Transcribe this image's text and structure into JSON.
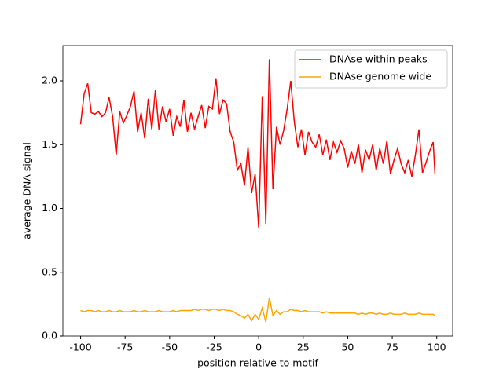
{
  "chart_data": {
    "type": "line",
    "xlabel": "position relative to motif",
    "ylabel": "average DNA signal",
    "x": [
      -100,
      -98,
      -96,
      -94,
      -92,
      -90,
      -88,
      -86,
      -84,
      -82,
      -80,
      -78,
      -76,
      -74,
      -72,
      -70,
      -68,
      -66,
      -64,
      -62,
      -60,
      -58,
      -56,
      -54,
      -52,
      -50,
      -48,
      -46,
      -44,
      -42,
      -40,
      -38,
      -36,
      -34,
      -32,
      -30,
      -28,
      -26,
      -24,
      -22,
      -20,
      -18,
      -16,
      -14,
      -12,
      -10,
      -8,
      -6,
      -4,
      -2,
      0,
      2,
      4,
      6,
      8,
      10,
      12,
      14,
      16,
      18,
      20,
      22,
      24,
      26,
      28,
      30,
      32,
      34,
      36,
      38,
      40,
      42,
      44,
      46,
      48,
      50,
      52,
      54,
      56,
      58,
      60,
      62,
      64,
      66,
      68,
      70,
      72,
      74,
      76,
      78,
      80,
      82,
      84,
      86,
      88,
      90,
      92,
      94,
      96,
      98,
      99
    ],
    "series": [
      {
        "name": "DNAse within peaks",
        "color": "#ff0000",
        "values": [
          1.66,
          1.9,
          1.98,
          1.75,
          1.74,
          1.76,
          1.72,
          1.75,
          1.87,
          1.72,
          1.42,
          1.76,
          1.67,
          1.73,
          1.8,
          1.92,
          1.6,
          1.75,
          1.55,
          1.86,
          1.62,
          1.93,
          1.62,
          1.8,
          1.68,
          1.78,
          1.57,
          1.72,
          1.64,
          1.85,
          1.6,
          1.75,
          1.62,
          1.72,
          1.81,
          1.63,
          1.8,
          1.78,
          2.02,
          1.74,
          1.85,
          1.82,
          1.6,
          1.52,
          1.3,
          1.35,
          1.18,
          1.48,
          1.12,
          1.27,
          0.85,
          1.88,
          0.88,
          2.17,
          1.15,
          1.64,
          1.5,
          1.61,
          1.78,
          2.0,
          1.68,
          1.48,
          1.62,
          1.42,
          1.6,
          1.52,
          1.48,
          1.58,
          1.42,
          1.54,
          1.38,
          1.52,
          1.44,
          1.53,
          1.47,
          1.32,
          1.45,
          1.35,
          1.5,
          1.28,
          1.46,
          1.38,
          1.5,
          1.3,
          1.47,
          1.35,
          1.53,
          1.27,
          1.38,
          1.47,
          1.35,
          1.28,
          1.38,
          1.25,
          1.42,
          1.62,
          1.28,
          1.36,
          1.45,
          1.52,
          1.27
        ]
      },
      {
        "name": "DNAse genome wide",
        "color": "#ffa500",
        "values": [
          0.2,
          0.19,
          0.2,
          0.2,
          0.19,
          0.2,
          0.19,
          0.19,
          0.2,
          0.19,
          0.19,
          0.2,
          0.19,
          0.19,
          0.19,
          0.2,
          0.19,
          0.19,
          0.2,
          0.19,
          0.19,
          0.19,
          0.2,
          0.19,
          0.19,
          0.19,
          0.2,
          0.19,
          0.2,
          0.2,
          0.2,
          0.2,
          0.21,
          0.2,
          0.21,
          0.21,
          0.2,
          0.21,
          0.21,
          0.2,
          0.21,
          0.2,
          0.2,
          0.19,
          0.17,
          0.16,
          0.14,
          0.17,
          0.12,
          0.17,
          0.13,
          0.22,
          0.11,
          0.3,
          0.16,
          0.2,
          0.17,
          0.19,
          0.19,
          0.21,
          0.2,
          0.2,
          0.19,
          0.2,
          0.19,
          0.19,
          0.19,
          0.19,
          0.18,
          0.19,
          0.18,
          0.18,
          0.18,
          0.18,
          0.18,
          0.18,
          0.18,
          0.18,
          0.17,
          0.18,
          0.17,
          0.18,
          0.18,
          0.17,
          0.18,
          0.17,
          0.17,
          0.18,
          0.17,
          0.17,
          0.17,
          0.18,
          0.17,
          0.17,
          0.17,
          0.18,
          0.17,
          0.17,
          0.17,
          0.17,
          0.16
        ]
      }
    ],
    "xlim": [
      -109.95,
      108.95
    ],
    "ylim": [
      0,
      2.277
    ],
    "xticks": [
      -100,
      -75,
      -50,
      -25,
      0,
      25,
      50,
      75,
      100
    ],
    "yticks": [
      {
        "value": 0,
        "label": "0.0"
      },
      {
        "value": 0.5,
        "label": "0.5"
      },
      {
        "value": 1,
        "label": "1.0"
      },
      {
        "value": 1.5,
        "label": "1.5"
      },
      {
        "value": 2,
        "label": "2.0"
      }
    ],
    "legend": "upper right"
  }
}
